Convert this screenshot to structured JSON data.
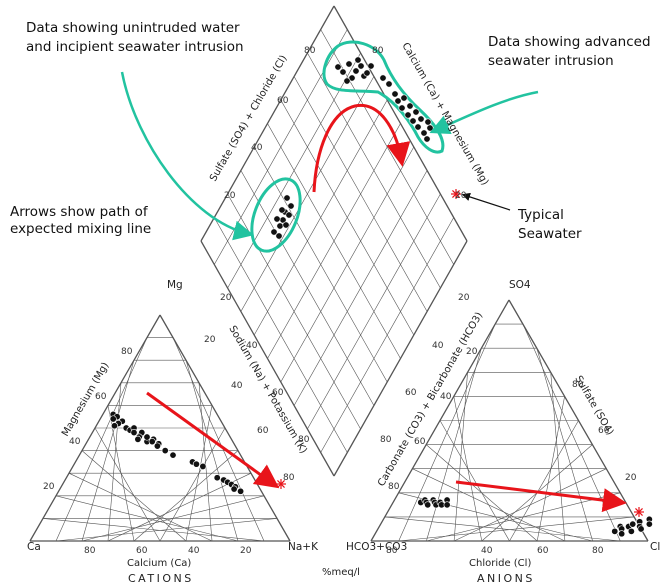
{
  "annotations": {
    "top_left_line1": "Data showing unintruded water",
    "top_left_line2": "and incipient seawater intrusion",
    "top_right_line1": "Data showing advanced",
    "top_right_line2": "seawater intrusion",
    "mid_left_line1": "Arrows show path of",
    "mid_left_line2": "expected mixing line",
    "seawater_line1": "Typical",
    "seawater_line2": "Seawater"
  },
  "cations": {
    "corner_top": "Mg",
    "corner_left": "Ca",
    "corner_right": "Na+K",
    "axis_left": "Magnesium (Mg)",
    "axis_bottom": "Calcium (Ca)",
    "axis_right": "Sodium (Na) + Potassium (K)",
    "title": "CATIONS"
  },
  "anions": {
    "corner_top": "SO4",
    "corner_left": "HCO3+CO3",
    "corner_right": "Cl",
    "axis_left": "Carbonate (CO3) + Bicarbonate (HCO3)",
    "axis_bottom": "Chloride (Cl)",
    "axis_right": "Sulfate (SO4)",
    "title": "ANIONS"
  },
  "diamond": {
    "axis_left": "Sulfate (SO4) + Chloride (Cl)",
    "axis_right": "Calcium (Ca) + Magnesium (Mg)"
  },
  "units": "%meq/l",
  "ticks": {
    "t20": "20",
    "t40": "40",
    "t60": "60",
    "t80": "80"
  },
  "colors": {
    "grid": "#555555",
    "points": "#111111",
    "arrow": "#e8141a",
    "highlight": "#22c3a0",
    "seawater": "#e8141a"
  },
  "chart_data": {
    "type": "scatter",
    "cation_points_mg_ca": [
      [
        56,
        40
      ],
      [
        55,
        39
      ],
      [
        54,
        41
      ],
      [
        53,
        38
      ],
      [
        52,
        40
      ],
      [
        51,
        42
      ],
      [
        50,
        38
      ],
      [
        49,
        37
      ],
      [
        50,
        35
      ],
      [
        48,
        36
      ],
      [
        47,
        34
      ],
      [
        48,
        33
      ],
      [
        46,
        35
      ],
      [
        45,
        36
      ],
      [
        44,
        33
      ],
      [
        46,
        32
      ],
      [
        45,
        30
      ],
      [
        44,
        31
      ],
      [
        43,
        29
      ],
      [
        42,
        30
      ],
      [
        40,
        28
      ],
      [
        38,
        26
      ],
      [
        35,
        20
      ],
      [
        34,
        19
      ],
      [
        33,
        17
      ],
      [
        28,
        14
      ],
      [
        27,
        12
      ],
      [
        26,
        11
      ],
      [
        25,
        10
      ],
      [
        24,
        9
      ],
      [
        23,
        10
      ],
      [
        22,
        8
      ]
    ],
    "anion_points_cl_so4": [
      [
        10,
        16
      ],
      [
        11,
        17
      ],
      [
        12,
        16
      ],
      [
        13,
        15
      ],
      [
        14,
        17
      ],
      [
        15,
        16
      ],
      [
        16,
        15
      ],
      [
        17,
        16
      ],
      [
        18,
        15
      ],
      [
        19,
        17
      ],
      [
        20,
        15
      ],
      [
        86,
        4
      ],
      [
        87,
        6
      ],
      [
        88,
        5
      ],
      [
        89,
        3
      ],
      [
        90,
        6
      ],
      [
        91,
        7
      ],
      [
        92,
        4
      ],
      [
        93,
        8
      ],
      [
        94,
        6
      ],
      [
        95,
        5
      ],
      [
        96,
        9
      ],
      [
        97,
        7
      ]
    ],
    "seawater_cation": [
      10,
      4
    ],
    "seawater_anion": [
      90,
      10
    ]
  }
}
